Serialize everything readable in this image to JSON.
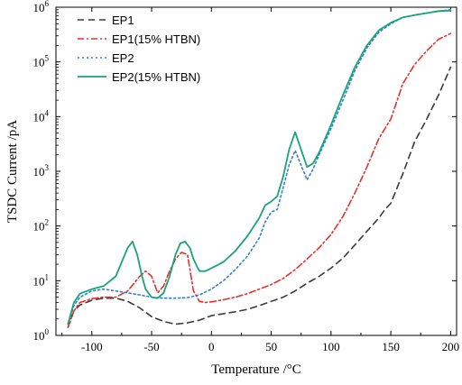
{
  "chart_data": {
    "type": "line",
    "xlabel": "Temperature /°C",
    "ylabel": "TSDC Current /pA",
    "xlim": [
      -130,
      205
    ],
    "ylim": [
      1,
      1000000
    ],
    "yscale": "log",
    "grid": false,
    "legend_position": "top-left",
    "x_ticks": [
      -100,
      -50,
      0,
      50,
      100,
      150,
      200
    ],
    "x_tick_labels": [
      "-100",
      "-50",
      "0",
      "50",
      "100",
      "150",
      "200"
    ],
    "y_ticks": [
      1,
      10,
      100,
      1000,
      10000,
      100000,
      1000000
    ],
    "y_tick_labels": [
      {
        "base": "10",
        "exp": "0"
      },
      {
        "base": "10",
        "exp": "1"
      },
      {
        "base": "10",
        "exp": "2"
      },
      {
        "base": "10",
        "exp": "3"
      },
      {
        "base": "10",
        "exp": "4"
      },
      {
        "base": "10",
        "exp": "5"
      },
      {
        "base": "10",
        "exp": "6"
      }
    ],
    "series": [
      {
        "name": "EP1",
        "color": "#3a3a3a",
        "dash": "dash",
        "x": [
          -120,
          -115,
          -110,
          -100,
          -90,
          -80,
          -70,
          -60,
          -50,
          -40,
          -30,
          -20,
          -10,
          0,
          10,
          20,
          30,
          40,
          50,
          60,
          70,
          80,
          90,
          100,
          110,
          120,
          130,
          140,
          145,
          150,
          160,
          170,
          180,
          190,
          200
        ],
        "y": [
          1.4,
          2.8,
          3.6,
          4.4,
          4.8,
          4.8,
          4.2,
          3.2,
          2.2,
          1.8,
          1.6,
          1.7,
          1.9,
          2.3,
          2.5,
          2.7,
          3.0,
          3.5,
          4.2,
          5.0,
          6.5,
          9.0,
          12,
          17,
          26,
          45,
          80,
          140,
          200,
          260,
          900,
          3500,
          9000,
          25000,
          80000
        ]
      },
      {
        "name": "EP1(15% HTBN)",
        "color": "#e8302a",
        "dash": "dashdot",
        "x": [
          -120,
          -115,
          -110,
          -100,
          -90,
          -80,
          -70,
          -60,
          -55,
          -50,
          -45,
          -40,
          -35,
          -30,
          -25,
          -20,
          -15,
          -10,
          -5,
          0,
          10,
          20,
          30,
          40,
          50,
          60,
          70,
          80,
          90,
          100,
          110,
          120,
          130,
          140,
          150,
          160,
          170,
          180,
          190,
          200
        ],
        "y": [
          1.4,
          2.8,
          4.0,
          4.7,
          5.0,
          5.0,
          6.5,
          12,
          15,
          12,
          6.0,
          8.0,
          15,
          25,
          33,
          30,
          6.5,
          4.2,
          4.0,
          4.1,
          4.5,
          5.0,
          5.8,
          7.0,
          8.5,
          11,
          16,
          25,
          40,
          70,
          150,
          400,
          1200,
          4000,
          9000,
          40000,
          90000,
          160000,
          260000,
          330000
        ]
      },
      {
        "name": "EP2",
        "color": "#2f7fd6",
        "dash": "dot",
        "x": [
          -120,
          -115,
          -110,
          -100,
          -90,
          -80,
          -70,
          -60,
          -50,
          -40,
          -30,
          -20,
          -10,
          0,
          10,
          20,
          30,
          40,
          45,
          50,
          55,
          60,
          65,
          70,
          75,
          80,
          85,
          90,
          100,
          110,
          120,
          130,
          140,
          150,
          160,
          170,
          180,
          190,
          200
        ],
        "y": [
          1.6,
          3.5,
          5.0,
          6.5,
          7.0,
          6.5,
          6.0,
          5.5,
          5.0,
          4.8,
          4.8,
          4.9,
          5.5,
          7.0,
          10,
          16,
          28,
          60,
          120,
          180,
          200,
          500,
          1300,
          2400,
          1300,
          700,
          1100,
          2000,
          6000,
          20000,
          70000,
          180000,
          350000,
          500000,
          650000,
          720000,
          780000,
          850000,
          900000
        ]
      },
      {
        "name": "EP2(15% HTBN)",
        "color": "#1aa37a",
        "dash": "solid",
        "x": [
          -120,
          -115,
          -110,
          -100,
          -90,
          -80,
          -75,
          -70,
          -66,
          -62,
          -58,
          -55,
          -50,
          -45,
          -40,
          -35,
          -30,
          -26,
          -22,
          -18,
          -15,
          -12,
          -10,
          -5,
          0,
          10,
          20,
          30,
          40,
          45,
          50,
          55,
          60,
          65,
          70,
          75,
          80,
          85,
          90,
          100,
          110,
          120,
          130,
          140,
          150,
          160,
          170,
          180,
          190,
          200
        ],
        "y": [
          1.6,
          4.0,
          5.8,
          7.0,
          8.0,
          12,
          22,
          40,
          52,
          30,
          12,
          7.0,
          5.0,
          4.8,
          6.0,
          12,
          30,
          48,
          52,
          40,
          25,
          18,
          15,
          15,
          17,
          22,
          35,
          65,
          140,
          240,
          280,
          350,
          800,
          2500,
          5200,
          2500,
          1200,
          1400,
          2200,
          7000,
          25000,
          80000,
          200000,
          380000,
          520000,
          650000,
          720000,
          780000,
          850000,
          870000
        ]
      }
    ]
  }
}
